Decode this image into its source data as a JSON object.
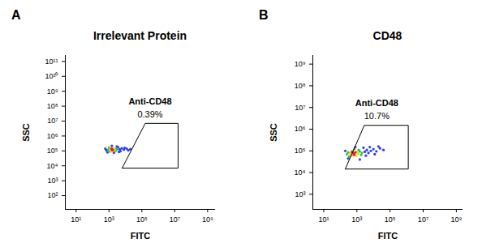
{
  "chart_data": [
    {
      "type": "scatter",
      "panel_label": "A",
      "title": "Irrelevant Protein",
      "x_label": "FITC",
      "y_label": "SSC",
      "log": true,
      "xlim": [
        2.2,
        3000000000
      ],
      "ylim": [
        12,
        250000000000
      ],
      "xticks": [
        {
          "value": 10,
          "label": "10¹"
        },
        {
          "value": 1000,
          "label": "10³"
        },
        {
          "value": 100000,
          "label": "10⁵"
        },
        {
          "value": 10000000,
          "label": "10⁷"
        },
        {
          "value": 1000000000,
          "label": "10⁹"
        }
      ],
      "yticks": [
        {
          "value": 100,
          "label": "10²"
        },
        {
          "value": 1000,
          "label": "10³"
        },
        {
          "value": 10000,
          "label": "10⁴"
        },
        {
          "value": 100000,
          "label": "10⁵"
        },
        {
          "value": 1000000,
          "label": "10⁶"
        },
        {
          "value": 10000000,
          "label": "10⁷"
        },
        {
          "value": 100000000,
          "label": "10⁸"
        },
        {
          "value": 1000000000,
          "label": "10⁹"
        },
        {
          "value": 10000000000,
          "label": "10¹⁰"
        },
        {
          "value": 100000000000,
          "label": "10¹¹"
        }
      ],
      "series": [
        {
          "color": "#2a3cf0",
          "values": [
            [
              700,
              110000
            ],
            [
              4500,
              130000
            ],
            [
              6000,
              150000
            ],
            [
              8000,
              120000
            ],
            [
              12000,
              140000
            ],
            [
              3500,
              180000
            ],
            [
              600,
              140000
            ],
            [
              5000,
              95000
            ],
            [
              9000,
              160000
            ],
            [
              15000,
              110000
            ],
            [
              2000,
              75000
            ],
            [
              1500,
              220000
            ],
            [
              20000,
              130000
            ],
            [
              800,
              80000
            ],
            [
              3000,
              200000
            ],
            [
              4000,
              85000
            ]
          ]
        },
        {
          "color": "#36c24a",
          "values": [
            [
              900,
              120000
            ],
            [
              2800,
              140000
            ],
            [
              1000,
              170000
            ],
            [
              2500,
              100000
            ],
            [
              1100,
              90000
            ],
            [
              3200,
              125000
            ]
          ]
        },
        {
          "color": "#f0d21e",
          "values": [
            [
              1200,
              150000
            ],
            [
              2000,
              130000
            ],
            [
              1300,
              100000
            ],
            [
              2200,
              115000
            ],
            [
              1800,
              160000
            ]
          ]
        },
        {
          "color": "#e8231d",
          "values": [
            [
              1500,
              130000
            ],
            [
              1700,
              120000
            ],
            [
              1400,
              140000
            ],
            [
              1600,
              110000
            ]
          ]
        }
      ],
      "gate": {
        "label": "Anti-CD48",
        "value": 0.39,
        "value_label": "0.39%",
        "x": [
          6300,
          160000,
          16000000,
          16000000
        ],
        "y": [
          7000,
          7000000,
          7000000,
          7000
        ]
      }
    },
    {
      "type": "scatter",
      "panel_label": "B",
      "title": "CD48",
      "x_label": "FITC",
      "y_label": "SSC",
      "log": true,
      "xlim": [
        2.2,
        2500000000
      ],
      "ylim": [
        200,
        2500000000
      ],
      "xticks": [
        {
          "value": 10,
          "label": "10¹"
        },
        {
          "value": 1000,
          "label": "10³"
        },
        {
          "value": 100000,
          "label": "10⁵"
        },
        {
          "value": 10000000,
          "label": "10⁷"
        },
        {
          "value": 1000000000,
          "label": "10⁹"
        }
      ],
      "yticks": [
        {
          "value": 1000,
          "label": "10³"
        },
        {
          "value": 10000,
          "label": "10⁴"
        },
        {
          "value": 100000,
          "label": "10⁵"
        },
        {
          "value": 1000000,
          "label": "10⁶"
        },
        {
          "value": 10000000,
          "label": "10⁷"
        },
        {
          "value": 100000000,
          "label": "10⁸"
        },
        {
          "value": 1000000000,
          "label": "10⁹"
        }
      ],
      "series": [
        {
          "color": "#2a3cf0",
          "values": [
            [
              3000,
              90000
            ],
            [
              4000,
              110000
            ],
            [
              5000,
              80000
            ],
            [
              7000,
              100000
            ],
            [
              10000,
              120000
            ],
            [
              15000,
              95000
            ],
            [
              25000,
              130000
            ],
            [
              40000,
              110000
            ],
            [
              2500,
              140000
            ],
            [
              200,
              100000
            ],
            [
              300,
              45000
            ],
            [
              6000,
              150000
            ],
            [
              12000,
              70000
            ],
            [
              20000,
              160000
            ],
            [
              1500,
              40000
            ],
            [
              800,
              150000
            ],
            [
              3500,
              60000
            ]
          ]
        },
        {
          "color": "#36c24a",
          "values": [
            [
              300,
              85000
            ],
            [
              1500,
              95000
            ],
            [
              350,
              55000
            ],
            [
              2000,
              80000
            ],
            [
              1300,
              110000
            ],
            [
              700,
              120000
            ],
            [
              1800,
              65000
            ],
            [
              250,
              70000
            ]
          ]
        },
        {
          "color": "#f0d21e",
          "values": [
            [
              400,
              75000
            ],
            [
              1000,
              90000
            ],
            [
              550,
              100000
            ],
            [
              900,
              60000
            ],
            [
              1200,
              75000
            ],
            [
              450,
              60000
            ]
          ]
        },
        {
          "color": "#e8231d",
          "values": [
            [
              600,
              80000
            ],
            [
              700,
              70000
            ],
            [
              500,
              90000
            ],
            [
              800,
              85000
            ],
            [
              650,
              65000
            ]
          ]
        }
      ],
      "gate": {
        "label": "Anti-CD48",
        "value": 10.7,
        "value_label": "10.7%",
        "x": [
          200,
          2800,
          1260000,
          1260000
        ],
        "y": [
          14500,
          1500000,
          1500000,
          14500
        ]
      }
    }
  ]
}
